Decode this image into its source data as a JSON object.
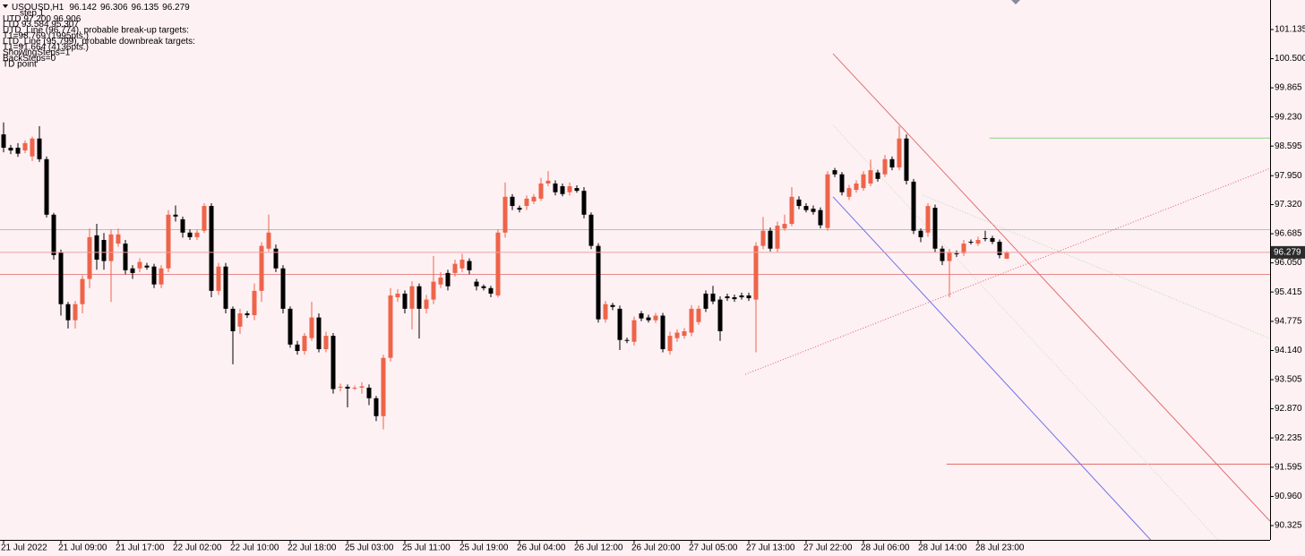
{
  "chart_data": {
    "type": "candlestick",
    "title": "USOUSD,H1",
    "annotations": [
      "step 1",
      "UTD 97.200 96.906",
      "LTD 93.584 95.307",
      "UTD_Line (96.774), probable break-up targets:",
      "T1=98.769 (1995pts.)",
      "LTD_Line (95.799), probable downbreak targets:",
      "T1=91.664 (4136pts.)",
      "ShowingSteps=1",
      "BackSteps=0",
      "TD point"
    ],
    "categories": [
      "21 Jul 2022",
      null,
      null,
      null,
      null,
      null,
      null,
      null,
      "21 Jul 09:00",
      null,
      null,
      null,
      null,
      null,
      null,
      null,
      "21 Jul 17:00",
      null,
      null,
      null,
      null,
      null,
      null,
      null,
      "22 Jul 02:00",
      null,
      null,
      null,
      null,
      null,
      null,
      null,
      "22 Jul 10:00",
      null,
      null,
      null,
      null,
      null,
      null,
      null,
      "22 Jul 18:00",
      null,
      null,
      null,
      null,
      null,
      null,
      null,
      "25 Jul 03:00",
      null,
      null,
      null,
      null,
      null,
      null,
      null,
      "25 Jul 11:00",
      null,
      null,
      null,
      null,
      null,
      null,
      null,
      "25 Jul 19:00",
      null,
      null,
      null,
      null,
      null,
      null,
      null,
      "26 Jul 04:00",
      null,
      null,
      null,
      null,
      null,
      null,
      null,
      "26 Jul 12:00",
      null,
      null,
      null,
      null,
      null,
      null,
      null,
      "26 Jul 20:00",
      null,
      null,
      null,
      null,
      null,
      null,
      null,
      "27 Jul 05:00",
      null,
      null,
      null,
      null,
      null,
      null,
      null,
      "27 Jul 13:00",
      null,
      null,
      null,
      null,
      null,
      null,
      null,
      "27 Jul 22:00",
      null,
      null,
      null,
      null,
      null,
      null,
      null,
      "28 Jul 06:00",
      null,
      null,
      null,
      null,
      null,
      null,
      null,
      "28 Jul 14:00",
      null,
      null,
      null,
      null,
      null,
      null,
      null,
      "28 Jul 23:00",
      null,
      null,
      null,
      null
    ],
    "open": [
      98.85,
      98.56,
      98.56,
      98.5,
      98.37,
      98.76,
      98.31,
      97.1,
      96.28,
      95.15,
      94.8,
      95.15,
      95.7,
      96.65,
      96.55,
      96.09,
      96.47,
      96.47,
      95.93,
      95.93,
      95.99,
      95.97,
      95.58,
      95.93,
      97.1,
      97.0,
      96.71,
      96.61,
      96.75,
      97.29,
      95.44,
      95.97,
      95.05,
      94.66,
      94.95,
      94.91,
      95.44,
      96.36,
      96.36,
      95.93,
      95.05,
      94.27,
      94.13,
      94.41,
      94.86,
      94.17,
      94.46,
      93.33,
      93.35,
      93.33,
      93.33,
      93.33,
      93.1,
      92.71,
      93.98,
      95.3,
      95.38,
      95.05,
      95.54,
      95.05,
      95.25,
      95.58,
      95.83,
      95.83,
      95.93,
      96.09,
      95.64,
      95.54,
      95.5,
      95.34,
      96.71,
      97.49,
      97.25,
      97.29,
      97.39,
      97.45,
      97.78,
      97.78,
      97.72,
      97.59,
      97.68,
      97.62,
      97.1,
      96.42,
      94.82,
      95.13,
      95.05,
      94.37,
      94.33,
      94.95,
      94.86,
      94.8,
      94.9,
      94.13,
      94.41,
      94.46,
      94.53,
      94.76,
      95.38,
      95.38,
      95.25,
      95.32,
      95.3,
      95.34,
      95.34,
      95.25,
      96.42,
      96.75,
      96.36,
      96.8,
      96.9,
      97.43,
      97.29,
      97.23,
      97.2,
      96.81,
      98.07,
      97.98,
      97.49,
      97.64,
      97.68,
      97.78,
      98.02,
      97.98,
      98.31,
      98.13,
      98.76,
      97.82,
      96.75,
      96.71,
      97.25,
      96.36,
      96.09,
      96.26,
      96.26,
      96.51,
      96.47,
      96.59,
      96.59,
      96.51,
      96.142
    ],
    "high": [
      99.11,
      98.62,
      98.66,
      98.72,
      98.8,
      99.03,
      98.37,
      97.14,
      96.34,
      95.2,
      95.22,
      95.78,
      96.8,
      96.9,
      96.7,
      96.78,
      96.8,
      96.55,
      96.0,
      96.15,
      96.05,
      96.03,
      96.0,
      97.2,
      97.3,
      97.06,
      96.78,
      96.78,
      97.35,
      97.35,
      96.05,
      96.05,
      95.1,
      95.05,
      95.0,
      95.6,
      96.5,
      97.1,
      96.45,
      96.0,
      95.1,
      94.35,
      94.52,
      95.2,
      94.95,
      94.55,
      94.52,
      93.42,
      93.4,
      93.38,
      93.45,
      93.4,
      93.15,
      94.05,
      95.5,
      95.48,
      95.45,
      95.65,
      95.6,
      95.35,
      96.2,
      95.85,
      95.9,
      96.12,
      96.25,
      96.15,
      95.7,
      95.58,
      95.55,
      96.78,
      97.8,
      97.55,
      97.3,
      97.52,
      97.55,
      97.9,
      98.05,
      97.85,
      97.78,
      97.8,
      97.74,
      97.7,
      97.15,
      96.48,
      95.22,
      95.18,
      95.12,
      94.42,
      94.88,
      95.0,
      94.92,
      94.96,
      94.96,
      94.55,
      94.6,
      94.63,
      95.13,
      95.12,
      95.45,
      95.55,
      95.32,
      95.38,
      95.36,
      95.4,
      95.4,
      96.5,
      97.05,
      96.82,
      96.95,
      97.1,
      97.7,
      97.5,
      97.35,
      97.3,
      97.26,
      98.05,
      98.12,
      98.03,
      97.75,
      97.85,
      98.05,
      98.3,
      98.08,
      98.4,
      98.37,
      99.03,
      98.85,
      97.88,
      96.8,
      97.35,
      97.32,
      96.42,
      96.35,
      96.32,
      96.55,
      96.56,
      96.62,
      96.75,
      96.64,
      96.56,
      96.306
    ],
    "low": [
      98.46,
      98.42,
      98.36,
      98.44,
      98.27,
      98.25,
      97.04,
      96.12,
      94.9,
      94.62,
      94.62,
      94.95,
      95.5,
      95.9,
      95.9,
      95.2,
      96.4,
      95.8,
      95.7,
      95.85,
      95.9,
      95.5,
      95.5,
      95.85,
      96.95,
      96.6,
      96.55,
      96.55,
      96.7,
      95.3,
      95.35,
      94.95,
      93.84,
      94.5,
      94.85,
      94.8,
      95.2,
      96.3,
      95.85,
      94.95,
      94.2,
      94.05,
      94.05,
      94.35,
      94.1,
      94.1,
      93.2,
      93.25,
      92.9,
      93.28,
      93.2,
      92.95,
      92.6,
      92.42,
      93.9,
      95.2,
      94.95,
      94.6,
      94.4,
      94.95,
      95.15,
      95.5,
      95.45,
      95.75,
      95.85,
      95.8,
      95.45,
      95.45,
      95.3,
      95.3,
      96.6,
      97.2,
      97.15,
      97.2,
      97.33,
      97.4,
      97.72,
      97.52,
      97.5,
      97.52,
      97.58,
      97.02,
      96.35,
      94.75,
      94.75,
      95.02,
      94.15,
      94.3,
      94.25,
      94.78,
      94.75,
      94.74,
      94.1,
      94.05,
      94.33,
      94.4,
      94.45,
      94.7,
      94.98,
      95.15,
      94.35,
      95.22,
      95.2,
      95.25,
      95.22,
      94.1,
      96.35,
      96.3,
      96.28,
      96.75,
      96.85,
      97.22,
      97.15,
      97.1,
      96.8,
      96.75,
      97.92,
      97.52,
      97.42,
      97.58,
      97.62,
      97.72,
      97.82,
      97.92,
      98.07,
      98.07,
      97.76,
      96.68,
      96.5,
      96.62,
      96.28,
      96.0,
      95.3,
      96.18,
      96.2,
      96.45,
      96.42,
      96.52,
      96.46,
      96.15,
      96.135
    ],
    "close": [
      98.56,
      98.5,
      98.43,
      98.66,
      98.76,
      98.31,
      97.1,
      96.22,
      95.15,
      94.8,
      95.15,
      95.7,
      96.61,
      96.12,
      96.09,
      96.67,
      96.67,
      95.89,
      95.83,
      96.07,
      95.95,
      95.58,
      95.93,
      97.1,
      97.06,
      96.71,
      96.61,
      96.71,
      97.29,
      95.44,
      95.97,
      95.05,
      94.56,
      94.95,
      94.91,
      95.44,
      96.42,
      96.71,
      95.93,
      95.05,
      94.27,
      94.13,
      94.46,
      94.86,
      94.17,
      94.46,
      93.3,
      93.35,
      93.31,
      93.33,
      93.36,
      93.1,
      92.71,
      93.98,
      95.34,
      95.38,
      95.05,
      95.54,
      95.05,
      95.25,
      95.64,
      95.73,
      95.54,
      96.03,
      96.12,
      95.89,
      95.54,
      95.5,
      95.38,
      96.71,
      97.49,
      97.29,
      97.21,
      97.45,
      97.49,
      97.78,
      97.84,
      97.59,
      97.55,
      97.72,
      97.62,
      97.1,
      96.42,
      94.82,
      95.15,
      95.09,
      94.37,
      94.35,
      94.8,
      94.84,
      94.8,
      94.9,
      94.17,
      94.46,
      94.53,
      94.56,
      95.05,
      95.05,
      95.05,
      95.21,
      94.56,
      95.28,
      95.26,
      95.3,
      95.28,
      96.42,
      96.75,
      96.36,
      96.86,
      96.9,
      97.49,
      97.29,
      97.2,
      97.16,
      96.87,
      97.98,
      97.98,
      97.59,
      97.68,
      97.78,
      97.98,
      98.07,
      97.88,
      98.31,
      98.13,
      98.76,
      97.84,
      96.75,
      96.61,
      97.29,
      96.36,
      96.09,
      96.28,
      96.24,
      96.47,
      96.49,
      96.55,
      96.57,
      96.51,
      96.22,
      96.279
    ],
    "up_color": "#ee6449",
    "down_color": "#000000",
    "xlim": [
      -0.5,
      176.75
    ],
    "ylim": [
      90.013,
      101.779
    ],
    "yticks": [
      101.135,
      {
        "value": 100.5,
        "label": "100.500"
      },
      99.865,
      {
        "value": 99.23,
        "label": "99.230"
      },
      98.595,
      {
        "value": 97.95,
        "label": "97.950"
      },
      {
        "value": 97.32,
        "label": "97.320"
      },
      96.685,
      {
        "value": 96.05,
        "label": "96.050"
      },
      95.415,
      94.775,
      {
        "value": 94.14,
        "label": "94.140"
      },
      93.505,
      {
        "value": 92.87,
        "label": "92.870"
      },
      92.235,
      91.595,
      {
        "value": 90.96,
        "label": "90.960"
      },
      90.325
    ],
    "levels": [
      {
        "value": 96.774,
        "color": "#9fd48f",
        "from": -0.5
      },
      {
        "value": 95.799,
        "color": "#e88a8a",
        "from": -0.5
      },
      {
        "value": 98.769,
        "color": "#8fcf7f",
        "from": 137.6
      },
      {
        "value": 91.664,
        "color": "#e06a6a",
        "from": 131.6
      }
    ],
    "price_line_color": "#f0a0a0",
    "trendlines": [
      {
        "x": [
          115.75,
          176.75
        ],
        "y": [
          100.61,
          90.42
        ],
        "color": "#e07070",
        "dashed": false
      },
      {
        "x": [
          103.5,
          176.75
        ],
        "y": [
          93.62,
          98.11
        ],
        "color": "#e06060",
        "dashed": true
      },
      {
        "x": [
          115.75,
          160.1
        ],
        "y": [
          97.49,
          90.01
        ],
        "color": "#7070e8",
        "dashed": false
      },
      {
        "x": [
          115.75,
          169.5
        ],
        "y": [
          99.05,
          90.01
        ],
        "color": "#c8dcc0",
        "dashed": true
      },
      {
        "x": [
          128.25,
          176.75
        ],
        "y": [
          97.53,
          94.4
        ],
        "color": "#b8d8a8",
        "dashed": true
      }
    ]
  }
}
